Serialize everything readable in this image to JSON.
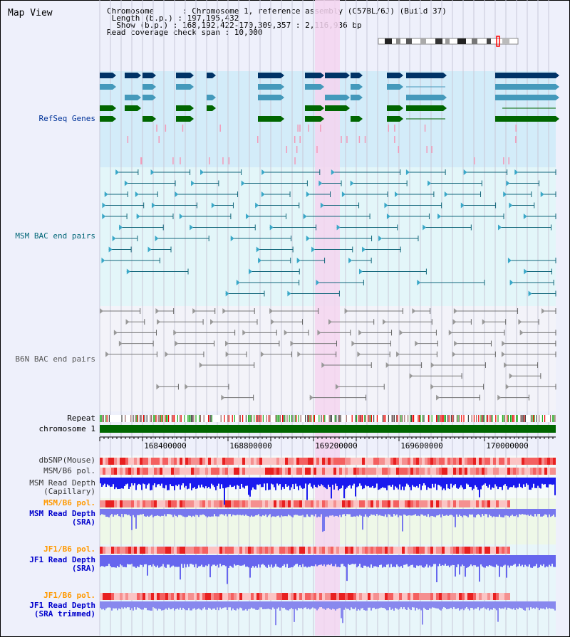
{
  "view_title": "Map View",
  "info": {
    "chromosome": "Chromosome      : Chromosome 1, reference assembly (C57BL/6J) (Build 37)",
    "length": " Length (b.p.) : 197,195,432",
    "show": "  Show (b.p.) : 168,192,422-170,309,357 : 2,116,936 bp",
    "coverage": "Read coverage check span : 10,000"
  },
  "tracks": {
    "refseq": "RefSeq Genes",
    "msm_bac": "MSM BAC end pairs",
    "b6n_bac": "B6N BAC end pairs",
    "repeat": "Repeat",
    "chromosome": "chromosome 1",
    "dbsnp": "dbSNP(Mouse)",
    "msm_b6_pol": "MSM/B6 pol.",
    "msm_depth_cap_1": "MSM Read Depth",
    "msm_depth_cap_2": "(Capillary)",
    "msm_b6_pol_2": "MSM/B6 pol.",
    "msm_depth_sra_1": "MSM Read Depth",
    "msm_depth_sra_2": "(SRA)",
    "jf1_b6_pol": "JF1/B6 pol.",
    "jf1_depth_sra_1": "JF1 Read Depth",
    "jf1_depth_sra_2": "(SRA)",
    "jf1_b6_pol_2": "JF1/B6 pol.",
    "jf1_depth_trim_1": "JF1 Read Depth",
    "jf1_depth_trim_2": "(SRA trimmed)"
  },
  "axis_ticks": [
    "168400000",
    "168800000",
    "169200000",
    "169600000",
    "170000000"
  ],
  "colors": {
    "refseq_bg": "#d3ecf9",
    "msm_bg": "#e3f6f9",
    "lower_bg": "#e6f4f4",
    "highlight": "#f5d5f0",
    "chromosome_bar": "#006600",
    "refseq_label": "#003399",
    "msm_label": "#006677",
    "b6n_label": "#555555",
    "orange_label": "#ff9900",
    "blue_label": "#0000cc"
  }
}
